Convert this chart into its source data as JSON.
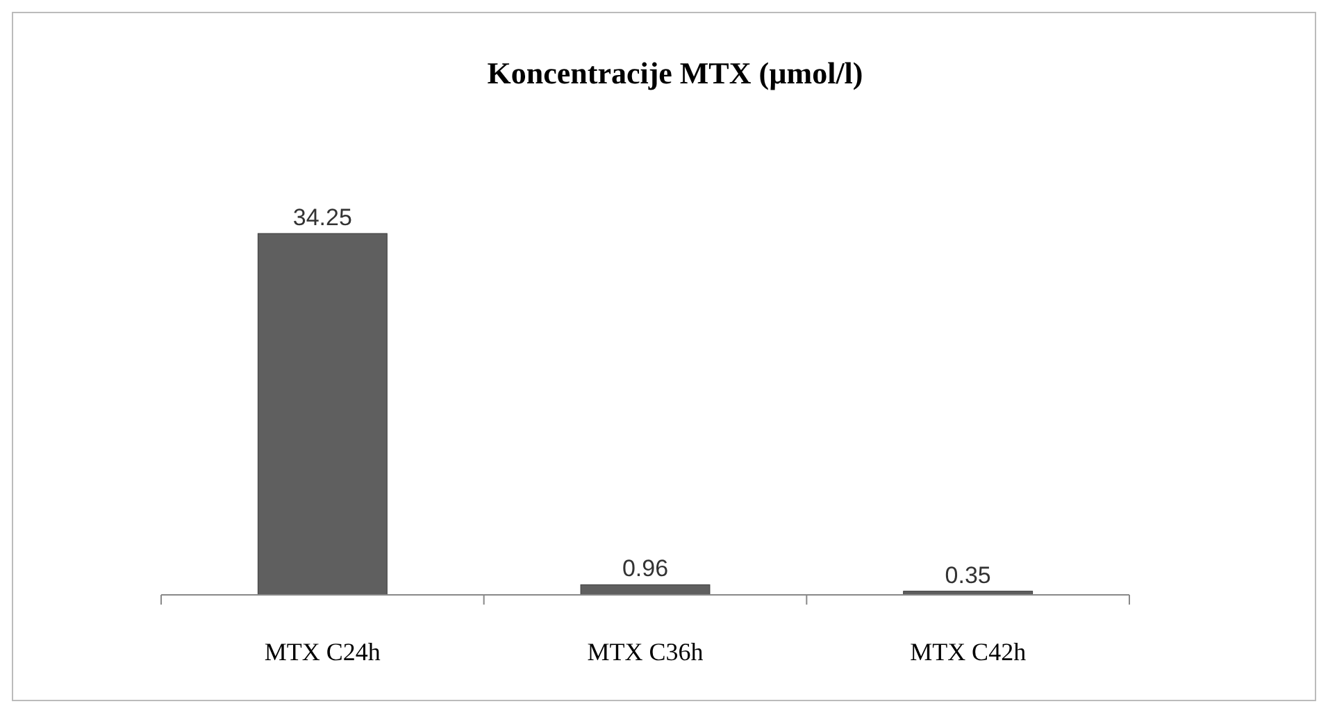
{
  "chart_data": {
    "type": "bar",
    "title": "Koncentracije MTX (µmol/l)",
    "categories": [
      "MTX C24h",
      "MTX C36h",
      "MTX C42h"
    ],
    "values": [
      34.25,
      0.96,
      0.35
    ],
    "color": "#5f5f5f",
    "data_labels": true
  }
}
